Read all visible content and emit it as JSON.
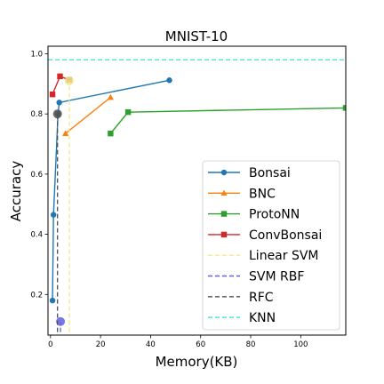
{
  "chart_data": {
    "type": "line",
    "title": "MNIST-10",
    "xlabel": "Memory(KB)",
    "ylabel": "Accuracy",
    "xlim": [
      -1,
      118
    ],
    "ylim": [
      0.065,
      1.025
    ],
    "xticks": [
      0,
      20,
      40,
      60,
      80,
      100
    ],
    "yticks": [
      0.2,
      0.4,
      0.6,
      0.8,
      1.0
    ],
    "xtick_labels": [
      "0",
      "20",
      "40",
      "60",
      "80",
      "100"
    ],
    "ytick_labels": [
      "0.2",
      "0.4",
      "0.6",
      "0.8",
      "1.0"
    ],
    "grid": false,
    "legend_position": "lower-right",
    "series": [
      {
        "name": "Bonsai",
        "color": "#1f77b4",
        "marker": "circle",
        "style": "solid",
        "x": [
          0.8,
          1.2,
          3.0,
          3.5,
          47.5
        ],
        "y": [
          0.18,
          0.465,
          0.8,
          0.838,
          0.912
        ]
      },
      {
        "name": "BNC",
        "color": "#ff7f0e",
        "marker": "triangle",
        "style": "solid",
        "x": [
          6.0,
          24.0
        ],
        "y": [
          0.735,
          0.855
        ]
      },
      {
        "name": "ProtoNN",
        "color": "#2ca02c",
        "marker": "square",
        "style": "solid",
        "x": [
          24.0,
          31.0,
          118.0
        ],
        "y": [
          0.735,
          0.806,
          0.82
        ]
      },
      {
        "name": "ConvBonsai",
        "color": "#d62728",
        "marker": "square",
        "style": "solid",
        "x": [
          0.8,
          3.8,
          7.5
        ],
        "y": [
          0.865,
          0.925,
          0.913
        ]
      },
      {
        "name": "Linear SVM",
        "color": "#f0e68c",
        "style": "dashed",
        "x": [
          7.5,
          7.5
        ],
        "y": [
          0.075,
          0.91
        ],
        "point": {
          "x": 7.5,
          "y": 0.91
        }
      },
      {
        "name": "SVM RBF",
        "color": "#6060e0",
        "style": "dashed",
        "x": [
          4.0,
          4.0
        ],
        "y": [
          0.075,
          0.11
        ],
        "point": {
          "x": 4.0,
          "y": 0.11
        }
      },
      {
        "name": "RFC",
        "color": "#505050",
        "style": "dashed",
        "x": [
          2.8,
          2.8
        ],
        "y": [
          0.075,
          0.8
        ],
        "point": {
          "x": 2.8,
          "y": 0.8
        }
      },
      {
        "name": "KNN",
        "color": "#40e0d0",
        "style": "dashed",
        "x": [
          -1,
          118
        ],
        "y": [
          0.98,
          0.98
        ]
      }
    ]
  }
}
